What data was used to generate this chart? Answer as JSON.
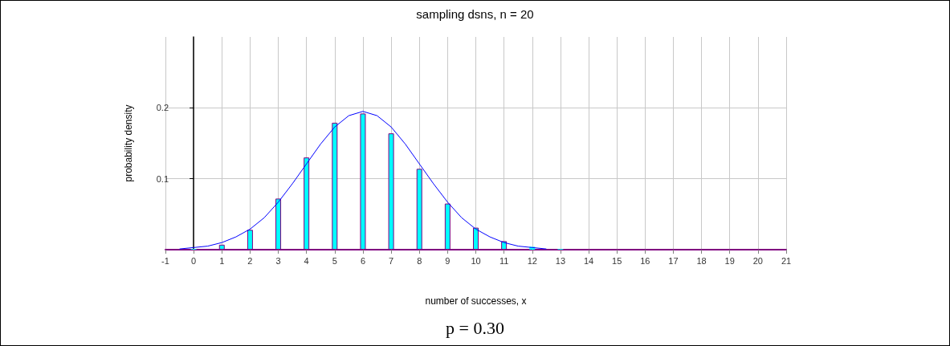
{
  "chart_data": {
    "type": "bar",
    "title": "sampling dsns, n = 20",
    "xlabel": "number of successes, x",
    "ylabel": "probability density",
    "annotations": [
      "p = 0.30"
    ],
    "x": [
      0,
      1,
      2,
      3,
      4,
      5,
      6,
      7,
      8,
      9,
      10,
      11,
      12,
      13,
      14,
      15,
      16,
      17,
      18,
      19,
      20
    ],
    "series": [
      {
        "color": "#00ffff",
        "values": [
          0.001,
          0.007,
          0.028,
          0.072,
          0.13,
          0.179,
          0.192,
          0.164,
          0.114,
          0.065,
          0.031,
          0.012,
          0.004,
          0.001,
          0,
          0,
          0,
          0,
          0,
          0,
          0
        ]
      },
      {
        "type": "line",
        "color": "#0000ff",
        "x": [
          -0.5,
          0,
          0.5,
          1,
          1.5,
          2,
          2.5,
          3,
          3.5,
          4,
          4.5,
          5,
          5.5,
          6,
          6.5,
          7,
          7.5,
          8,
          8.5,
          9,
          9.5,
          10,
          10.5,
          11,
          11.5,
          12,
          12.5
        ],
        "values": [
          0.001,
          0.003,
          0.005,
          0.01,
          0.018,
          0.029,
          0.045,
          0.067,
          0.093,
          0.121,
          0.149,
          0.173,
          0.189,
          0.195,
          0.189,
          0.173,
          0.149,
          0.121,
          0.093,
          0.067,
          0.045,
          0.029,
          0.018,
          0.01,
          0.005,
          0.003,
          0.001
        ]
      }
    ],
    "xlim": [
      -1,
      21
    ],
    "xticks": [
      -1,
      0,
      1,
      2,
      3,
      4,
      5,
      6,
      7,
      8,
      9,
      10,
      11,
      12,
      13,
      14,
      15,
      16,
      17,
      18,
      19,
      20,
      21
    ],
    "ylim": [
      0,
      0.3
    ],
    "yticks": [
      0.1,
      0.2
    ],
    "grid": true,
    "marker": "none",
    "line_style": "solid"
  }
}
